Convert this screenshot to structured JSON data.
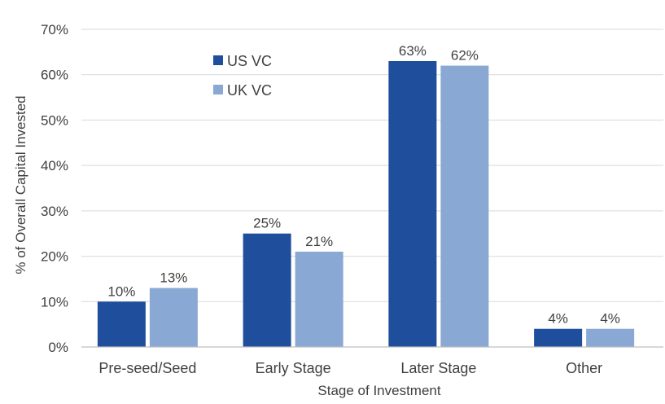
{
  "chart_data": {
    "type": "bar",
    "categories": [
      "Pre-seed/Seed",
      "Early Stage",
      "Later Stage",
      "Other"
    ],
    "series": [
      {
        "name": "US VC",
        "values": [
          10,
          25,
          63,
          4
        ],
        "labels": [
          "10%",
          "25%",
          "63%",
          "4%"
        ]
      },
      {
        "name": "UK VC",
        "values": [
          13,
          21,
          62,
          4
        ],
        "labels": [
          "13%",
          "21%",
          "62%",
          "4%"
        ]
      }
    ],
    "xlabel": "Stage of Investment",
    "ylabel": "% of Overall Capital Invested",
    "ylim": [
      0,
      70
    ],
    "yticks": [
      "0%",
      "10%",
      "20%",
      "30%",
      "40%",
      "50%",
      "60%",
      "70%"
    ],
    "grid": true,
    "legend_position": "top-left"
  },
  "colors": {
    "us": "#1f4e9c",
    "uk": "#8aa8d4"
  }
}
